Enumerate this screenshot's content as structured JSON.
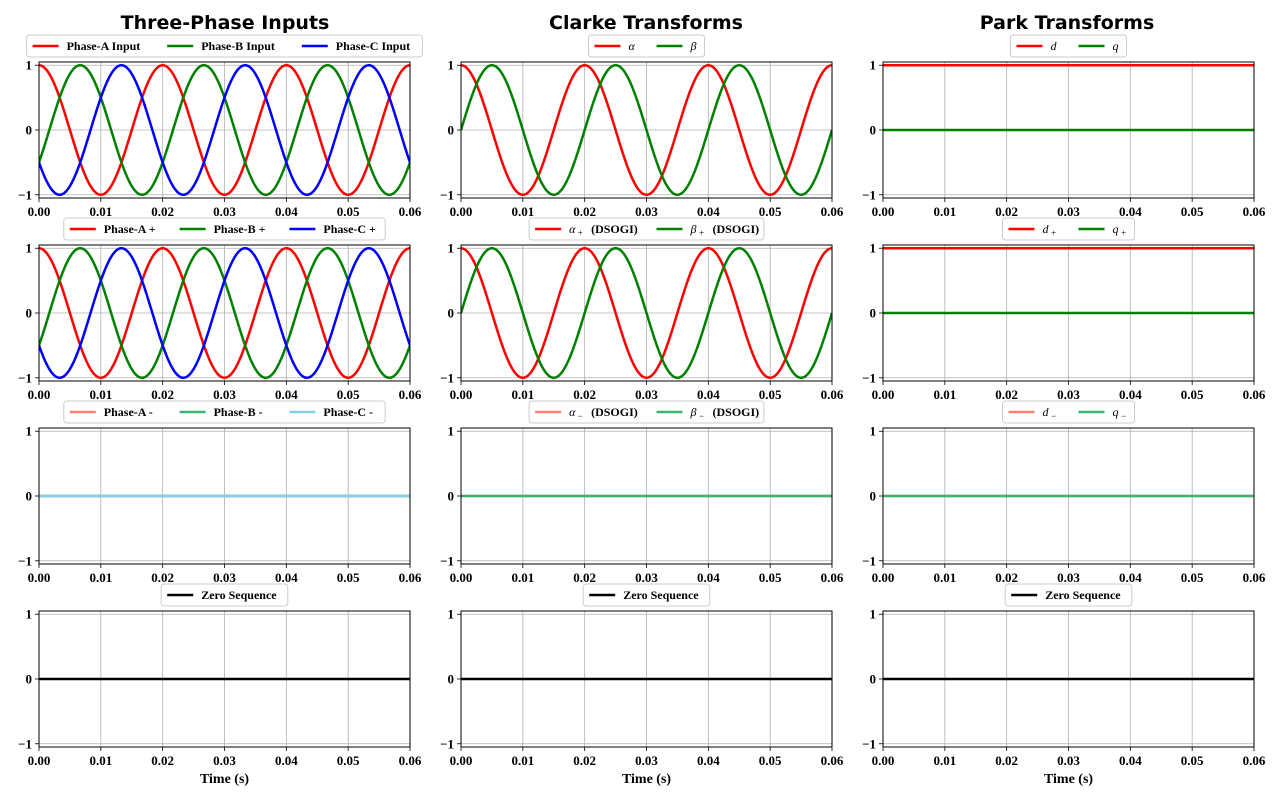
{
  "column_titles": [
    "Three-Phase Inputs",
    "Clarke Transforms",
    "Park Transforms"
  ],
  "colors": {
    "phase_a": "#ff0000",
    "phase_b": "#008000",
    "phase_c": "#0000ff",
    "neg_a": "#fa8072",
    "neg_b": "#3cb371",
    "neg_c": "#87ceeb",
    "zero": "#000000",
    "grid": "#b0b0b0"
  },
  "chart_data": [
    {
      "type": "line",
      "row": 0,
      "col": 0,
      "xlim": [
        0,
        0.06
      ],
      "ylim": [
        -1.05,
        1.05
      ],
      "xticks": [
        "0.00",
        "0.01",
        "0.02",
        "0.03",
        "0.04",
        "0.05",
        "0.06"
      ],
      "yticks": [
        "1",
        "0",
        "−1"
      ],
      "xlabel": "",
      "grid": true,
      "legend": "top-center",
      "series": [
        {
          "name": "Phase-A Input",
          "color": "#ff0000",
          "func": "cos",
          "amplitude": 1,
          "frequency_hz": 50,
          "phase_deg": 0
        },
        {
          "name": "Phase-B Input",
          "color": "#008000",
          "func": "cos",
          "amplitude": 1,
          "frequency_hz": 50,
          "phase_deg": -120
        },
        {
          "name": "Phase-C Input",
          "color": "#0000ff",
          "func": "cos",
          "amplitude": 1,
          "frequency_hz": 50,
          "phase_deg": 120
        }
      ]
    },
    {
      "type": "line",
      "row": 0,
      "col": 1,
      "xlim": [
        0,
        0.06
      ],
      "ylim": [
        -1.05,
        1.05
      ],
      "xticks": [
        "0.00",
        "0.01",
        "0.02",
        "0.03",
        "0.04",
        "0.05",
        "0.06"
      ],
      "yticks": [
        "1",
        "0",
        "−1"
      ],
      "xlabel": "",
      "grid": true,
      "legend": "top-center",
      "series": [
        {
          "name": "α",
          "name_sub": "",
          "name_suffix": "",
          "italic": true,
          "color": "#ff0000",
          "func": "cos",
          "amplitude": 1,
          "frequency_hz": 50,
          "phase_deg": 0
        },
        {
          "name": "β",
          "name_sub": "",
          "name_suffix": "",
          "italic": true,
          "color": "#008000",
          "func": "cos",
          "amplitude": 1,
          "frequency_hz": 50,
          "phase_deg": -90
        }
      ]
    },
    {
      "type": "line",
      "row": 0,
      "col": 2,
      "xlim": [
        0,
        0.06
      ],
      "ylim": [
        -1.05,
        1.05
      ],
      "xticks": [
        "0.00",
        "0.01",
        "0.02",
        "0.03",
        "0.04",
        "0.05",
        "0.06"
      ],
      "yticks": [
        "1",
        "0",
        "−1"
      ],
      "xlabel": "",
      "grid": true,
      "legend": "top-center",
      "series": [
        {
          "name": "d",
          "name_sub": "",
          "name_suffix": "",
          "italic": true,
          "color": "#ff0000",
          "func": "const",
          "value": 1
        },
        {
          "name": "q",
          "name_sub": "",
          "name_suffix": "",
          "italic": true,
          "color": "#008000",
          "func": "const",
          "value": 0
        }
      ]
    },
    {
      "type": "line",
      "row": 1,
      "col": 0,
      "xlim": [
        0,
        0.06
      ],
      "ylim": [
        -1.05,
        1.05
      ],
      "xticks": [
        "0.00",
        "0.01",
        "0.02",
        "0.03",
        "0.04",
        "0.05",
        "0.06"
      ],
      "yticks": [
        "1",
        "0",
        "−1"
      ],
      "xlabel": "",
      "grid": true,
      "legend": "top-center",
      "series": [
        {
          "name": "Phase-A +",
          "color": "#ff0000",
          "func": "cos",
          "amplitude": 1,
          "frequency_hz": 50,
          "phase_deg": 0
        },
        {
          "name": "Phase-B +",
          "color": "#008000",
          "func": "cos",
          "amplitude": 1,
          "frequency_hz": 50,
          "phase_deg": -120
        },
        {
          "name": "Phase-C +",
          "color": "#0000ff",
          "func": "cos",
          "amplitude": 1,
          "frequency_hz": 50,
          "phase_deg": 120
        }
      ]
    },
    {
      "type": "line",
      "row": 1,
      "col": 1,
      "xlim": [
        0,
        0.06
      ],
      "ylim": [
        -1.05,
        1.05
      ],
      "xticks": [
        "0.00",
        "0.01",
        "0.02",
        "0.03",
        "0.04",
        "0.05",
        "0.06"
      ],
      "yticks": [
        "1",
        "0",
        "−1"
      ],
      "xlabel": "",
      "grid": true,
      "legend": "top-center",
      "series": [
        {
          "name": "α",
          "name_sub": "+",
          "name_suffix": "(DSOGI)",
          "italic": true,
          "color": "#ff0000",
          "func": "cos",
          "amplitude": 1,
          "frequency_hz": 50,
          "phase_deg": 0
        },
        {
          "name": "β",
          "name_sub": "+",
          "name_suffix": "(DSOGI)",
          "italic": true,
          "color": "#008000",
          "func": "cos",
          "amplitude": 1,
          "frequency_hz": 50,
          "phase_deg": -90
        }
      ]
    },
    {
      "type": "line",
      "row": 1,
      "col": 2,
      "xlim": [
        0,
        0.06
      ],
      "ylim": [
        -1.05,
        1.05
      ],
      "xticks": [
        "0.00",
        "0.01",
        "0.02",
        "0.03",
        "0.04",
        "0.05",
        "0.06"
      ],
      "yticks": [
        "1",
        "0",
        "−1"
      ],
      "xlabel": "",
      "grid": true,
      "legend": "top-center",
      "series": [
        {
          "name": "d",
          "name_sub": "+",
          "name_suffix": "",
          "italic": true,
          "color": "#ff0000",
          "func": "const",
          "value": 1
        },
        {
          "name": "q",
          "name_sub": "+",
          "name_suffix": "",
          "italic": true,
          "color": "#008000",
          "func": "const",
          "value": 0
        }
      ]
    },
    {
      "type": "line",
      "row": 2,
      "col": 0,
      "xlim": [
        0,
        0.06
      ],
      "ylim": [
        -1.05,
        1.05
      ],
      "xticks": [
        "0.00",
        "0.01",
        "0.02",
        "0.03",
        "0.04",
        "0.05",
        "0.06"
      ],
      "yticks": [
        "1",
        "0",
        "−1"
      ],
      "xlabel": "",
      "grid": true,
      "legend": "top-center",
      "series": [
        {
          "name": "Phase-A -",
          "color": "#fa8072",
          "func": "const",
          "value": 0
        },
        {
          "name": "Phase-B -",
          "color": "#3cb371",
          "func": "const",
          "value": 0
        },
        {
          "name": "Phase-C -",
          "color": "#87ceeb",
          "func": "const",
          "value": 0
        }
      ]
    },
    {
      "type": "line",
      "row": 2,
      "col": 1,
      "xlim": [
        0,
        0.06
      ],
      "ylim": [
        -1.05,
        1.05
      ],
      "xticks": [
        "0.00",
        "0.01",
        "0.02",
        "0.03",
        "0.04",
        "0.05",
        "0.06"
      ],
      "yticks": [
        "1",
        "0",
        "−1"
      ],
      "xlabel": "",
      "grid": true,
      "legend": "top-center",
      "series": [
        {
          "name": "α",
          "name_sub": "−",
          "name_suffix": "(DSOGI)",
          "italic": true,
          "color": "#fa8072",
          "func": "const",
          "value": 0
        },
        {
          "name": "β",
          "name_sub": "−",
          "name_suffix": "(DSOGI)",
          "italic": true,
          "color": "#3cb371",
          "func": "const",
          "value": 0
        }
      ]
    },
    {
      "type": "line",
      "row": 2,
      "col": 2,
      "xlim": [
        0,
        0.06
      ],
      "ylim": [
        -1.05,
        1.05
      ],
      "xticks": [
        "0.00",
        "0.01",
        "0.02",
        "0.03",
        "0.04",
        "0.05",
        "0.06"
      ],
      "yticks": [
        "1",
        "0",
        "−1"
      ],
      "xlabel": "",
      "grid": true,
      "legend": "top-center",
      "series": [
        {
          "name": "d",
          "name_sub": "−",
          "name_suffix": "",
          "italic": true,
          "color": "#fa8072",
          "func": "const",
          "value": 0
        },
        {
          "name": "q",
          "name_sub": "−",
          "name_suffix": "",
          "italic": true,
          "color": "#3cb371",
          "func": "const",
          "value": 0
        }
      ]
    },
    {
      "type": "line",
      "row": 3,
      "col": 0,
      "xlim": [
        0,
        0.06
      ],
      "ylim": [
        -1.05,
        1.05
      ],
      "xticks": [
        "0.00",
        "0.01",
        "0.02",
        "0.03",
        "0.04",
        "0.05",
        "0.06"
      ],
      "yticks": [
        "1",
        "0",
        "−1"
      ],
      "xlabel": "Time (s)",
      "grid": true,
      "legend": "top-center",
      "series": [
        {
          "name": "Zero Sequence",
          "color": "#000000",
          "func": "const",
          "value": 0
        }
      ]
    },
    {
      "type": "line",
      "row": 3,
      "col": 1,
      "xlim": [
        0,
        0.06
      ],
      "ylim": [
        -1.05,
        1.05
      ],
      "xticks": [
        "0.00",
        "0.01",
        "0.02",
        "0.03",
        "0.04",
        "0.05",
        "0.06"
      ],
      "yticks": [
        "1",
        "0",
        "−1"
      ],
      "xlabel": "Time (s)",
      "grid": true,
      "legend": "top-center",
      "series": [
        {
          "name": "Zero Sequence",
          "color": "#000000",
          "func": "const",
          "value": 0
        }
      ]
    },
    {
      "type": "line",
      "row": 3,
      "col": 2,
      "xlim": [
        0,
        0.06
      ],
      "ylim": [
        -1.05,
        1.05
      ],
      "xticks": [
        "0.00",
        "0.01",
        "0.02",
        "0.03",
        "0.04",
        "0.05",
        "0.06"
      ],
      "yticks": [
        "1",
        "0",
        "−1"
      ],
      "xlabel": "Time (s)",
      "grid": true,
      "legend": "top-center",
      "series": [
        {
          "name": "Zero Sequence",
          "color": "#000000",
          "func": "const",
          "value": 0
        }
      ]
    }
  ]
}
